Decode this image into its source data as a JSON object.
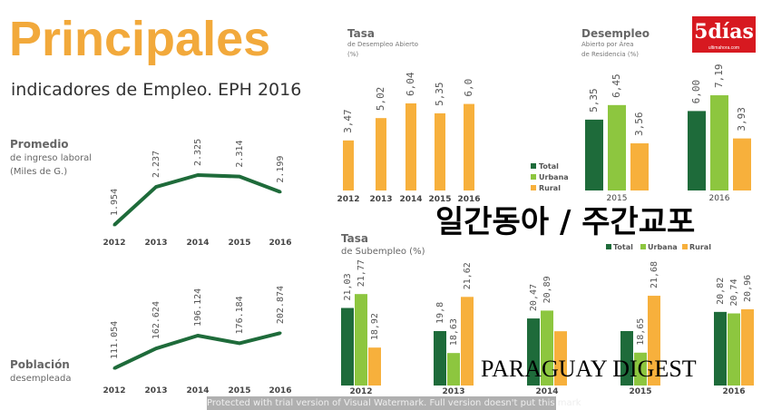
{
  "header": {
    "title": "Principales",
    "subtitle": "indicadores de Empleo. EPH 2016"
  },
  "logo": {
    "text": "5días",
    "tagline": "ultimahora.com",
    "color": "#D71920"
  },
  "colors": {
    "total": "#1E6B3A",
    "urbana": "#8DC63F",
    "rural": "#F7B03C",
    "line": "#1E6B3A",
    "title": "#F2A93B"
  },
  "chart_data": [
    {
      "type": "line",
      "title": "Promedio",
      "subtitle": "de ingreso laboral",
      "subtitle2": "(Miles de G.)",
      "categories": [
        "2012",
        "2013",
        "2014",
        "2015",
        "2016"
      ],
      "values": [
        1954,
        2237,
        2325,
        2314,
        2199
      ],
      "labels": [
        "1.954",
        "2.237",
        "2.325",
        "2.314",
        "2.199"
      ]
    },
    {
      "type": "line",
      "title": "Población",
      "subtitle": "desempleada",
      "categories": [
        "2012",
        "2013",
        "2014",
        "2015",
        "2016"
      ],
      "values": [
        111054,
        162624,
        196124,
        176184,
        202874
      ],
      "labels": [
        "111.054",
        "162.624",
        "196.124",
        "176.184",
        "202.874"
      ]
    },
    {
      "type": "bar",
      "title": "Tasa",
      "subtitle": "de Desempleo Abierto",
      "subtitle2": "(%)",
      "categories": [
        "2012",
        "2013",
        "2014",
        "2015",
        "2016"
      ],
      "values": [
        3.47,
        5.02,
        6.04,
        5.35,
        6.0
      ],
      "labels": [
        "3,47",
        "5,02",
        "6,04",
        "5,35",
        "6,0"
      ]
    },
    {
      "type": "bar",
      "title": "Desempleo",
      "subtitle": "Abierto por Área",
      "subtitle2": "de Residencia (%)",
      "categories": [
        "2015",
        "2016"
      ],
      "series": [
        {
          "name": "Total",
          "values": [
            5.35,
            6.0
          ],
          "labels": [
            "5,35",
            "6,00"
          ]
        },
        {
          "name": "Urbana",
          "values": [
            6.45,
            7.19
          ],
          "labels": [
            "6,45",
            "7,19"
          ]
        },
        {
          "name": "Rural",
          "values": [
            3.56,
            3.93
          ],
          "labels": [
            "3,56",
            "3,93"
          ]
        }
      ],
      "legend": "left"
    },
    {
      "type": "bar",
      "title": "Tasa",
      "subtitle": "de Subempleo (%)",
      "categories": [
        "2012",
        "2013",
        "2014",
        "2015",
        "2016"
      ],
      "series": [
        {
          "name": "Total",
          "values": [
            21.03,
            19.8,
            20.47,
            19.8,
            20.82
          ],
          "labels": [
            "21,03",
            "19,8",
            "20,47",
            "",
            "20,82"
          ]
        },
        {
          "name": "Urbana",
          "values": [
            21.77,
            18.63,
            20.89,
            18.65,
            20.74
          ],
          "labels": [
            "21,77",
            "18,63",
            "20,89",
            "18,65",
            "20,74"
          ]
        },
        {
          "name": "Rural",
          "values": [
            18.92,
            21.62,
            19.79,
            21.68,
            20.96
          ],
          "labels": [
            "18,92",
            "21,62",
            "",
            "21,68",
            "20,96"
          ]
        }
      ],
      "legend": "top-right"
    }
  ],
  "watermark": {
    "line1": "일간동아 / 주간교포",
    "line2": "PARAGUAY DIGEST",
    "trial": "Protected with trial version of Visual Watermark. Full version doesn't put this mark"
  }
}
